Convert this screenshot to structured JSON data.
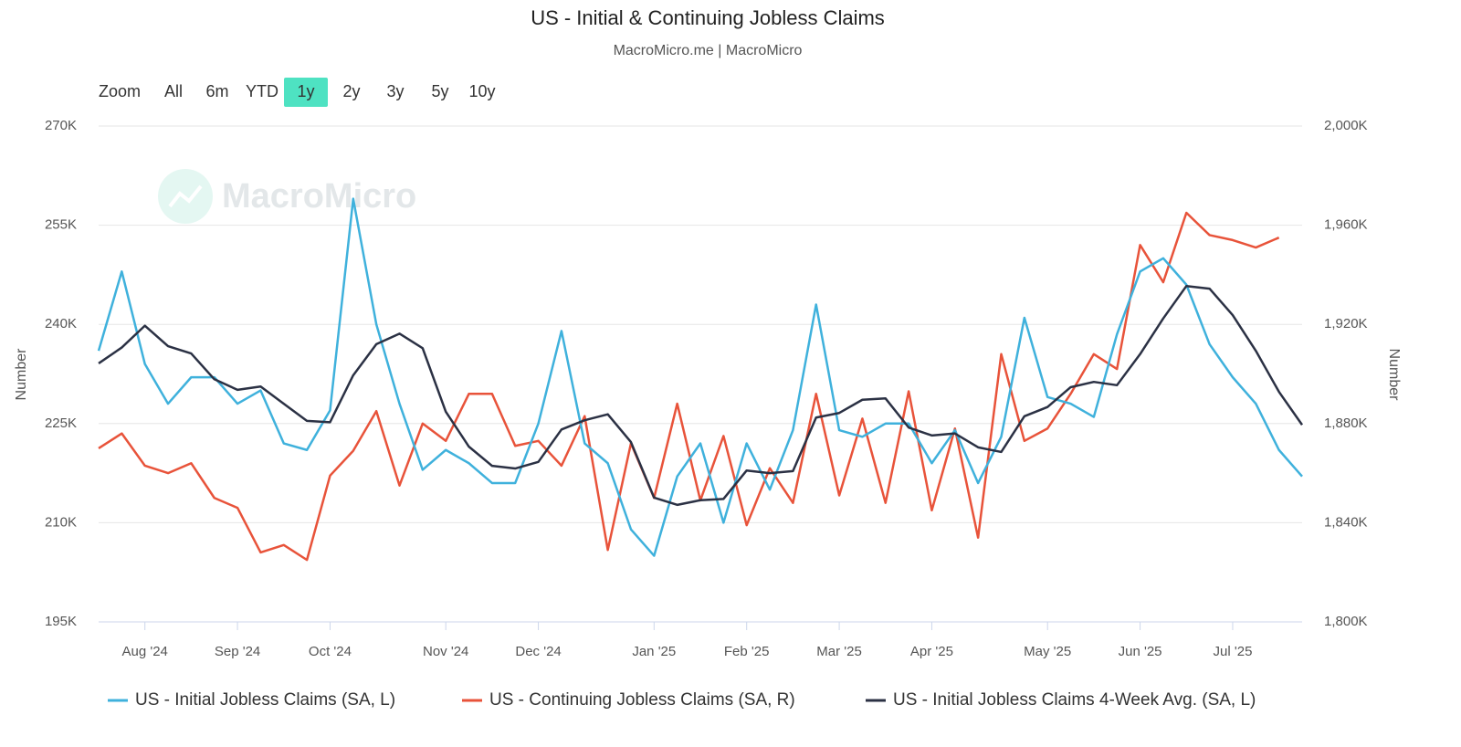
{
  "chart_data": {
    "type": "line",
    "title": "US - Initial & Continuing Jobless Claims",
    "subtitle": "MacroMicro.me | MacroMicro",
    "watermark": "MacroMicro",
    "range_selector": {
      "label": "Zoom",
      "buttons": [
        "All",
        "6m",
        "YTD",
        "1y",
        "2y",
        "3y",
        "5y",
        "10y"
      ],
      "active": 3
    },
    "categories": [
      null,
      null,
      "Aug '24",
      null,
      null,
      null,
      "Sep '24",
      null,
      null,
      null,
      "Oct '24",
      null,
      null,
      null,
      null,
      "Nov '24",
      null,
      null,
      null,
      "Dec '24",
      null,
      null,
      null,
      null,
      "Jan '25",
      null,
      null,
      null,
      "Feb '25",
      null,
      null,
      null,
      "Mar '25",
      null,
      null,
      null,
      "Apr '25",
      null,
      null,
      null,
      null,
      "May '25",
      null,
      null,
      null,
      "Jun '25",
      null,
      null,
      null,
      "Jul '25",
      null,
      null,
      null
    ],
    "ylabel": "Number",
    "y2label": "Number",
    "ylim": [
      195,
      270
    ],
    "yticks": [
      {
        "value": 195,
        "label": "195K"
      },
      {
        "value": 210,
        "label": "210K"
      },
      {
        "value": 225,
        "label": "225K"
      },
      {
        "value": 240,
        "label": "240K"
      },
      {
        "value": 255,
        "label": "255K"
      },
      {
        "value": 270,
        "label": "270K"
      }
    ],
    "y2lim": [
      1800,
      2000
    ],
    "y2ticks": [
      {
        "value": 1800,
        "label": "1,800K"
      },
      {
        "value": 1840,
        "label": "1,840K"
      },
      {
        "value": 1880,
        "label": "1,880K"
      },
      {
        "value": 1920,
        "label": "1,920K"
      },
      {
        "value": 1960,
        "label": "1,960K"
      },
      {
        "value": 2000,
        "label": "2,000K"
      }
    ],
    "grid": true,
    "legend": "bottom",
    "series": [
      {
        "name": "US - Initial Jobless Claims (SA, L)",
        "color": "#3fb1dc",
        "axis": "y",
        "values": [
          236,
          248,
          234,
          228,
          232,
          232,
          228,
          230,
          222,
          221,
          227,
          259,
          240,
          228,
          218,
          221,
          219,
          216,
          216,
          225,
          239,
          222,
          219,
          209,
          205,
          217,
          222,
          210,
          222,
          215,
          224,
          243,
          224,
          223,
          225,
          225,
          219,
          224,
          216,
          223,
          241,
          229,
          228,
          226,
          238.5,
          248,
          250,
          246,
          237,
          232,
          228,
          221,
          217
        ]
      },
      {
        "name": "US - Continuing Jobless Claims (SA, R)",
        "color": "#e8533a",
        "axis": "y2",
        "values": [
          1870,
          1876,
          1863,
          1860,
          1864,
          1850,
          1846,
          1828,
          1831,
          1825,
          1859,
          1869,
          1885,
          1855,
          1880,
          1873,
          1892,
          1892,
          1871,
          1873,
          1863,
          1883,
          1829,
          1872,
          1850,
          1888,
          1849,
          1875,
          1839,
          1862,
          1848,
          1892,
          1851,
          1882,
          1848,
          1893,
          1845,
          1878,
          1834,
          1908,
          1873,
          1878,
          1892,
          1908,
          1902,
          1952,
          1937,
          1965,
          1956,
          1954,
          1951,
          1955,
          null
        ]
      },
      {
        "name": "US - Initial Jobless Claims 4-Week Avg. (SA, L)",
        "color": "#2b3144",
        "axis": "y",
        "values": [
          234.1,
          236.5,
          239.8,
          236.7,
          235.6,
          231.7,
          230.1,
          230.6,
          228.0,
          225.4,
          225.2,
          232.3,
          237.0,
          238.6,
          236.4,
          226.8,
          221.5,
          218.6,
          218.2,
          219.2,
          224.1,
          225.5,
          226.4,
          222.2,
          213.8,
          212.7,
          213.4,
          213.6,
          217.9,
          217.5,
          217.8,
          225.9,
          226.6,
          228.6,
          228.8,
          224.4,
          223.2,
          223.5,
          221.4,
          220.7,
          226.1,
          227.5,
          230.5,
          231.3,
          230.8,
          235.5,
          240.9,
          245.8,
          245.4,
          241.4,
          236.0,
          229.8,
          224.8
        ]
      }
    ]
  }
}
